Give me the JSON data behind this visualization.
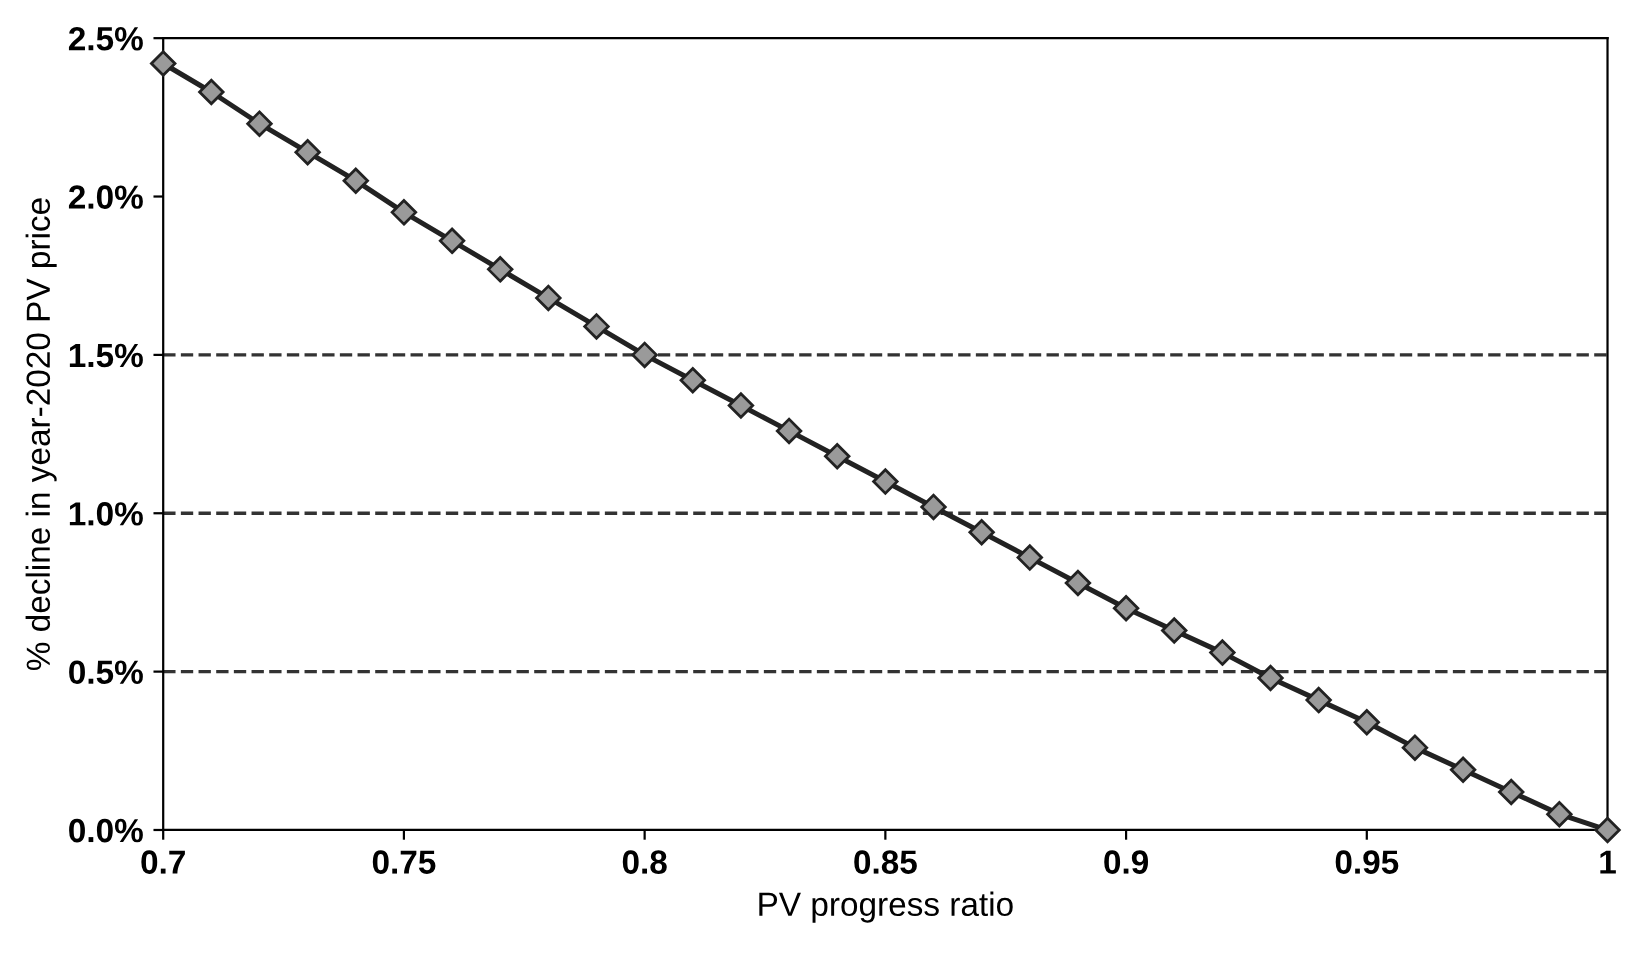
{
  "chart_data": {
    "type": "line",
    "xlabel": "PV progress ratio",
    "ylabel": "% decline in year-2020 PV price",
    "x": [
      0.7,
      0.71,
      0.72,
      0.73,
      0.74,
      0.75,
      0.76,
      0.77,
      0.78,
      0.79,
      0.8,
      0.81,
      0.82,
      0.83,
      0.84,
      0.85,
      0.86,
      0.87,
      0.88,
      0.89,
      0.9,
      0.91,
      0.92,
      0.93,
      0.94,
      0.95,
      0.96,
      0.97,
      0.98,
      0.99,
      1.0
    ],
    "series": [
      {
        "color": "#222222",
        "values": [
          2.42,
          2.33,
          2.23,
          2.14,
          2.05,
          1.95,
          1.86,
          1.77,
          1.68,
          1.59,
          1.5,
          1.42,
          1.34,
          1.26,
          1.18,
          1.1,
          1.02,
          0.94,
          0.86,
          0.78,
          0.7,
          0.63,
          0.56,
          0.48,
          0.41,
          0.34,
          0.26,
          0.19,
          0.12,
          0.05,
          0.0
        ]
      }
    ],
    "marker": "diamond",
    "line_style": "solid",
    "xlim": [
      0.7,
      1.0
    ],
    "xticks": [
      0.7,
      0.75,
      0.8,
      0.85,
      0.9,
      0.95,
      {
        "value": 1.0,
        "label": "1"
      }
    ],
    "ylim": [
      0,
      2.5
    ],
    "yticks": [
      {
        "value": 0,
        "label": "0.0%"
      },
      {
        "value": 0.5,
        "label": "0.5%"
      },
      {
        "value": 1.0,
        "label": "1.0%"
      },
      {
        "value": 1.5,
        "label": "1.5%"
      },
      {
        "value": 2.0,
        "label": "2.0%"
      },
      {
        "value": 2.5,
        "label": "2.5%"
      }
    ],
    "ref_lines": [
      {
        "axis": "y",
        "value": 0.5,
        "line_style": "dashed",
        "color": "#333333"
      },
      {
        "axis": "y",
        "value": 1.0,
        "line_style": "dashed",
        "color": "#333333"
      },
      {
        "axis": "y",
        "value": 1.5,
        "line_style": "dashed",
        "color": "#333333"
      }
    ]
  }
}
